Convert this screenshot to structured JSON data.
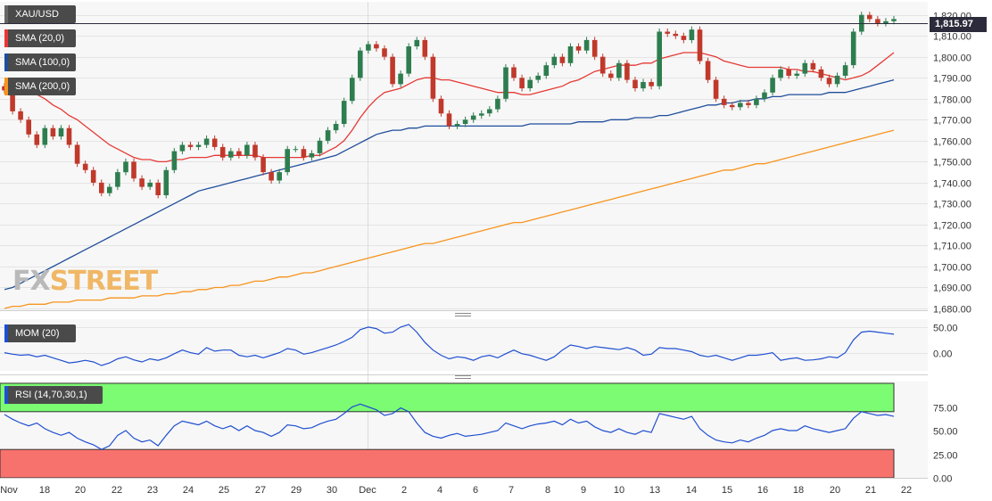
{
  "symbol": "XAU/USD",
  "last_price": "1,815.97",
  "watermark": {
    "part1": "FX",
    "part2": "STREET"
  },
  "indicators": {
    "sma20": {
      "label": "SMA (20,0)",
      "color": "#e53935"
    },
    "sma100": {
      "label": "SMA (100,0)",
      "color": "#1f4e9c"
    },
    "sma200": {
      "label": "SMA (200,0)",
      "color": "#f7941d"
    },
    "mom": {
      "label": "MOM (20)",
      "color": "#1f4fd1"
    },
    "rsi": {
      "label": "RSI (14,70,30,1)",
      "color": "#1f4fd1"
    }
  },
  "colors": {
    "up": "#2e7d4f",
    "down": "#c0392b",
    "overbought": "#7cfc72",
    "oversold": "#f8726d"
  },
  "chart_data": {
    "type": "candlestick",
    "price_axis": {
      "ylim": [
        1680,
        1822
      ],
      "ticks": [
        "1,820.00",
        "1,810.00",
        "1,800.00",
        "1,790.00",
        "1,780.00",
        "1,770.00",
        "1,760.00",
        "1,750.00",
        "1,740.00",
        "1,730.00",
        "1,720.00",
        "1,710.00",
        "1,700.00",
        "1,690.00",
        "1,680.00"
      ]
    },
    "mom_axis": {
      "ylim": [
        -32,
        62
      ],
      "ticks": [
        "50.00",
        "0.00"
      ]
    },
    "rsi_axis": {
      "ylim": [
        0,
        100
      ],
      "ticks": [
        "75.00",
        "50.00",
        "25.00",
        "0.00"
      ],
      "levels": [
        70,
        30
      ]
    },
    "x_labels": [
      "Nov",
      "18",
      "20",
      "22",
      "23",
      "24",
      "25",
      "27",
      "29",
      "30",
      "Dec",
      "2",
      "4",
      "6",
      "7",
      "8",
      "9",
      "10",
      "13",
      "14",
      "15",
      "16",
      "18",
      "20",
      "21",
      "22"
    ],
    "close": [
      1784,
      1774,
      1770,
      1763,
      1758,
      1766,
      1762,
      1766,
      1758,
      1749,
      1746,
      1740,
      1735,
      1738,
      1745,
      1750,
      1742,
      1738,
      1740,
      1734,
      1746,
      1755,
      1758,
      1757,
      1758,
      1761,
      1757,
      1752,
      1755,
      1753,
      1758,
      1752,
      1745,
      1741,
      1745,
      1756,
      1756,
      1752,
      1754,
      1760,
      1765,
      1768,
      1779,
      1790,
      1803,
      1806,
      1804,
      1800,
      1787,
      1792,
      1805,
      1808,
      1800,
      1780,
      1773,
      1767,
      1768,
      1770,
      1772,
      1773,
      1775,
      1780,
      1795,
      1790,
      1785,
      1789,
      1791,
      1796,
      1800,
      1797,
      1805,
      1803,
      1808,
      1800,
      1792,
      1790,
      1797,
      1789,
      1785,
      1788,
      1786,
      1812,
      1811,
      1810,
      1808,
      1813,
      1798,
      1789,
      1780,
      1777,
      1776,
      1778,
      1777,
      1780,
      1783,
      1790,
      1794,
      1791,
      1792,
      1797,
      1794,
      1790,
      1787,
      1791,
      1796,
      1812,
      1820,
      1818,
      1816,
      1817,
      1818
    ],
    "sma20": [
      1789,
      1788,
      1786,
      1784,
      1782,
      1780,
      1777,
      1775,
      1772,
      1770,
      1767,
      1764,
      1761,
      1758,
      1756,
      1754,
      1752,
      1751,
      1751,
      1750,
      1750,
      1751,
      1751,
      1752,
      1752,
      1752,
      1753,
      1753,
      1753,
      1753,
      1753,
      1753,
      1752,
      1752,
      1752,
      1752,
      1752,
      1752,
      1753,
      1753,
      1755,
      1757,
      1760,
      1765,
      1771,
      1776,
      1780,
      1783,
      1784,
      1785,
      1787,
      1789,
      1790,
      1790,
      1789,
      1789,
      1788,
      1787,
      1786,
      1785,
      1784,
      1783,
      1783,
      1783,
      1782,
      1782,
      1783,
      1784,
      1785,
      1786,
      1788,
      1789,
      1791,
      1793,
      1794,
      1795,
      1796,
      1796,
      1796,
      1797,
      1797,
      1799,
      1800,
      1801,
      1802,
      1802,
      1802,
      1801,
      1800,
      1798,
      1797,
      1796,
      1795,
      1795,
      1795,
      1795,
      1795,
      1794,
      1794,
      1793,
      1793,
      1792,
      1791,
      1790,
      1789,
      1790,
      1791,
      1793,
      1796,
      1799,
      1802
    ],
    "sma100": [
      1689,
      1690,
      1692,
      1694,
      1696,
      1698,
      1700,
      1702,
      1704,
      1706,
      1708,
      1710,
      1712,
      1714,
      1716,
      1718,
      1720,
      1722,
      1724,
      1726,
      1728,
      1730,
      1732,
      1734,
      1736,
      1737,
      1738,
      1739,
      1740,
      1741,
      1742,
      1743,
      1744,
      1745,
      1746,
      1747,
      1748,
      1749,
      1750,
      1751,
      1752,
      1753,
      1755,
      1757,
      1759,
      1761,
      1763,
      1764,
      1765,
      1765,
      1766,
      1766,
      1767,
      1767,
      1767,
      1767,
      1767,
      1767,
      1767,
      1767,
      1767,
      1767,
      1767,
      1767,
      1767,
      1768,
      1768,
      1768,
      1768,
      1768,
      1768,
      1769,
      1769,
      1769,
      1769,
      1770,
      1770,
      1770,
      1771,
      1771,
      1771,
      1772,
      1772,
      1773,
      1774,
      1775,
      1776,
      1777,
      1777,
      1778,
      1778,
      1779,
      1779,
      1780,
      1780,
      1781,
      1781,
      1782,
      1782,
      1782,
      1782,
      1782,
      1783,
      1783,
      1783,
      1784,
      1785,
      1786,
      1787,
      1788,
      1789
    ],
    "sma200": [
      1680,
      1681,
      1681,
      1682,
      1682,
      1682,
      1683,
      1683,
      1683,
      1684,
      1684,
      1684,
      1684,
      1685,
      1685,
      1685,
      1685,
      1686,
      1686,
      1686,
      1687,
      1687,
      1688,
      1688,
      1689,
      1689,
      1690,
      1690,
      1691,
      1691,
      1692,
      1693,
      1693,
      1694,
      1695,
      1695,
      1696,
      1697,
      1697,
      1698,
      1699,
      1700,
      1701,
      1702,
      1703,
      1704,
      1705,
      1706,
      1707,
      1708,
      1709,
      1710,
      1711,
      1711,
      1712,
      1713,
      1714,
      1715,
      1716,
      1717,
      1718,
      1719,
      1720,
      1721,
      1721,
      1722,
      1723,
      1724,
      1725,
      1726,
      1727,
      1728,
      1729,
      1730,
      1731,
      1732,
      1733,
      1734,
      1735,
      1736,
      1737,
      1738,
      1739,
      1740,
      1741,
      1742,
      1743,
      1744,
      1745,
      1746,
      1746,
      1747,
      1748,
      1749,
      1749,
      1750,
      1751,
      1752,
      1753,
      1754,
      1755,
      1756,
      1757,
      1758,
      1759,
      1760,
      1761,
      1762,
      1763,
      1764,
      1765
    ],
    "mom": [
      0,
      -3,
      -5,
      -4,
      -8,
      -5,
      -10,
      -15,
      -20,
      -18,
      -15,
      -18,
      -25,
      -20,
      -12,
      -8,
      -14,
      -18,
      -12,
      -15,
      -10,
      -2,
      5,
      0,
      -3,
      10,
      3,
      5,
      5,
      -5,
      -8,
      -5,
      -10,
      -5,
      0,
      8,
      5,
      -3,
      0,
      5,
      10,
      15,
      22,
      30,
      45,
      50,
      47,
      38,
      40,
      50,
      55,
      40,
      20,
      5,
      -5,
      -12,
      -8,
      -10,
      -15,
      -8,
      -5,
      -10,
      -2,
      5,
      -2,
      -5,
      -10,
      -15,
      -8,
      5,
      15,
      12,
      8,
      12,
      10,
      8,
      6,
      10,
      5,
      -5,
      -3,
      10,
      8,
      8,
      5,
      2,
      -5,
      -8,
      -5,
      -10,
      -15,
      -10,
      -5,
      -5,
      -3,
      0,
      -15,
      -12,
      -10,
      -15,
      -14,
      -12,
      -8,
      -10,
      0,
      25,
      40,
      42,
      40,
      38,
      36
    ],
    "rsi": [
      67,
      62,
      58,
      55,
      58,
      52,
      48,
      45,
      48,
      42,
      38,
      35,
      30,
      34,
      45,
      50,
      42,
      38,
      40,
      34,
      45,
      55,
      60,
      58,
      56,
      60,
      55,
      52,
      55,
      50,
      55,
      50,
      48,
      44,
      48,
      56,
      55,
      52,
      53,
      57,
      60,
      62,
      68,
      75,
      78,
      75,
      72,
      66,
      68,
      74,
      70,
      58,
      48,
      44,
      42,
      45,
      47,
      44,
      45,
      46,
      48,
      50,
      58,
      55,
      52,
      55,
      57,
      58,
      60,
      56,
      62,
      58,
      60,
      54,
      50,
      48,
      52,
      48,
      46,
      50,
      48,
      68,
      66,
      64,
      62,
      65,
      52,
      45,
      40,
      38,
      37,
      40,
      38,
      42,
      45,
      50,
      52,
      50,
      50,
      55,
      52,
      50,
      48,
      50,
      52,
      63,
      70,
      68,
      66,
      67,
      65
    ]
  }
}
